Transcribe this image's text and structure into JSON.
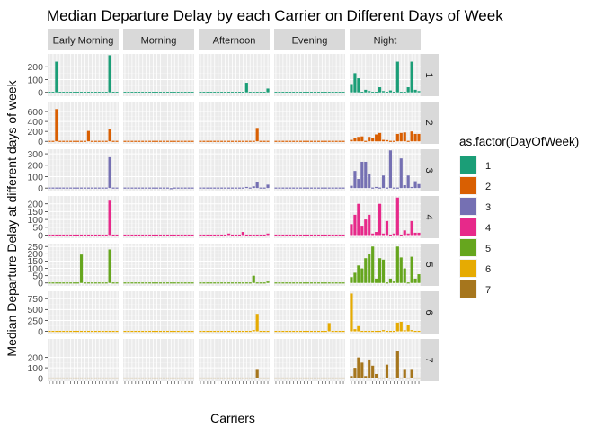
{
  "chart_data": {
    "type": "bar",
    "title": "Median Departure Delay by each Carrier on Different Days of Week",
    "xlabel": "Carriers",
    "ylabel": "Median Departure Delay at different days of week",
    "facet_columns": [
      "Early Morning",
      "Morning",
      "Afternoon",
      "Evening",
      "Night"
    ],
    "facet_rows": [
      "1",
      "2",
      "3",
      "4",
      "5",
      "6",
      "7"
    ],
    "legend": {
      "title": "as.factor(DayOfWeek)",
      "position": "right",
      "items": [
        {
          "label": "1",
          "color": "#1b9e77"
        },
        {
          "label": "2",
          "color": "#d95f02"
        },
        {
          "label": "3",
          "color": "#7570b3"
        },
        {
          "label": "4",
          "color": "#e7298a"
        },
        {
          "label": "5",
          "color": "#66a61e"
        },
        {
          "label": "6",
          "color": "#e6ab02"
        },
        {
          "label": "7",
          "color": "#a6761d"
        }
      ]
    },
    "row_axes": [
      {
        "ylim": [
          -30,
          300
        ],
        "ticks": [
          0,
          100,
          200
        ]
      },
      {
        "ylim": [
          -50,
          800
        ],
        "ticks": [
          0,
          200,
          400,
          600
        ]
      },
      {
        "ylim": [
          -30,
          340
        ],
        "ticks": [
          0,
          100,
          200,
          300
        ]
      },
      {
        "ylim": [
          -20,
          250
        ],
        "ticks": [
          0,
          50,
          100,
          150,
          200
        ]
      },
      {
        "ylim": [
          -20,
          270
        ],
        "ticks": [
          0,
          50,
          100,
          150,
          200,
          250
        ]
      },
      {
        "ylim": [
          -50,
          920
        ],
        "ticks": [
          0,
          250,
          500,
          750
        ]
      },
      {
        "ylim": [
          -30,
          380
        ],
        "ticks": [
          0,
          100,
          200
        ]
      }
    ],
    "n_carriers": 20,
    "grid": true,
    "series": [
      {
        "name": "1",
        "panels": [
          [
            5,
            3,
            240,
            5,
            4,
            5,
            4,
            0,
            3,
            4,
            0,
            5,
            4,
            5,
            4,
            3,
            0,
            290,
            5,
            6
          ],
          [
            6,
            5,
            4,
            5,
            3,
            5,
            4,
            3,
            4,
            5,
            3,
            4,
            5,
            3,
            4,
            5,
            0,
            4,
            3,
            5
          ],
          [
            4,
            3,
            5,
            4,
            3,
            2,
            4,
            3,
            5,
            6,
            8,
            5,
            4,
            75,
            3,
            2,
            0,
            4,
            6,
            30
          ],
          [
            3,
            2,
            4,
            3,
            2,
            3,
            4,
            2,
            3,
            2,
            4,
            3,
            2,
            3,
            4,
            2,
            3,
            3,
            2,
            4
          ],
          [
            65,
            150,
            110,
            5,
            20,
            10,
            2,
            5,
            40,
            10,
            0,
            15,
            0,
            240,
            5,
            8,
            40,
            240,
            20,
            10
          ]
        ]
      },
      {
        "name": "2",
        "panels": [
          [
            5,
            -10,
            650,
            4,
            5,
            3,
            5,
            4,
            3,
            4,
            5,
            210,
            3,
            -15,
            4,
            5,
            3,
            250,
            4,
            5
          ],
          [
            3,
            4,
            2,
            3,
            4,
            2,
            3,
            4,
            3,
            2,
            4,
            3,
            2,
            3,
            4,
            3,
            2,
            4,
            3,
            2
          ],
          [
            2,
            3,
            4,
            3,
            2,
            4,
            3,
            2,
            3,
            4,
            2,
            3,
            4,
            2,
            -15,
            3,
            270,
            4,
            2,
            3
          ],
          [
            3,
            2,
            4,
            3,
            2,
            -10,
            3,
            2,
            4,
            3,
            2,
            3,
            4,
            2,
            3,
            2,
            4,
            3,
            2,
            3
          ],
          [
            30,
            60,
            90,
            100,
            10,
            90,
            60,
            140,
            170,
            30,
            25,
            20,
            10,
            150,
            170,
            180,
            8,
            200,
            150,
            150
          ]
        ]
      },
      {
        "name": "3",
        "panels": [
          [
            4,
            5,
            3,
            4,
            5,
            4,
            3,
            5,
            4,
            5,
            3,
            4,
            5,
            4,
            3,
            -5,
            5,
            270,
            4,
            5
          ],
          [
            3,
            2,
            4,
            3,
            2,
            4,
            3,
            2,
            3,
            4,
            2,
            3,
            4,
            -10,
            3,
            2,
            4,
            3,
            2,
            3
          ],
          [
            3,
            4,
            2,
            3,
            4,
            2,
            3,
            4,
            2,
            3,
            4,
            2,
            5,
            10,
            3,
            15,
            50,
            4,
            3,
            30
          ],
          [
            3,
            2,
            4,
            3,
            2,
            3,
            4,
            2,
            3,
            2,
            4,
            3,
            2,
            3,
            4,
            2,
            3,
            3,
            2,
            4
          ],
          [
            20,
            150,
            80,
            230,
            230,
            120,
            5,
            10,
            5,
            110,
            0,
            330,
            5,
            5,
            260,
            25,
            110,
            10,
            60,
            35
          ]
        ]
      },
      {
        "name": "4",
        "panels": [
          [
            4,
            5,
            3,
            4,
            5,
            4,
            3,
            5,
            4,
            5,
            3,
            4,
            5,
            4,
            3,
            4,
            5,
            220,
            4,
            5
          ],
          [
            4,
            5,
            3,
            4,
            2,
            6,
            3,
            4,
            5,
            3,
            2,
            4,
            5,
            3,
            4,
            2,
            3,
            4,
            5,
            3
          ],
          [
            5,
            3,
            4,
            6,
            3,
            5,
            4,
            3,
            10,
            5,
            4,
            3,
            20,
            3,
            5,
            4,
            3,
            5,
            4,
            10
          ],
          [
            4,
            3,
            5,
            4,
            3,
            4,
            5,
            3,
            4,
            3,
            4,
            5,
            3,
            4,
            5,
            3,
            4,
            4,
            3,
            5
          ],
          [
            70,
            130,
            200,
            60,
            100,
            130,
            10,
            20,
            200,
            10,
            90,
            5,
            10,
            240,
            5,
            30,
            10,
            90,
            15,
            15
          ]
        ]
      },
      {
        "name": "5",
        "panels": [
          [
            4,
            5,
            3,
            4,
            5,
            4,
            3,
            5,
            4,
            195,
            3,
            4,
            5,
            4,
            3,
            5,
            5,
            230,
            4,
            5
          ],
          [
            3,
            4,
            2,
            3,
            4,
            2,
            3,
            4,
            3,
            2,
            4,
            3,
            2,
            3,
            4,
            3,
            2,
            4,
            3,
            2
          ],
          [
            3,
            4,
            2,
            3,
            4,
            2,
            3,
            4,
            2,
            3,
            4,
            2,
            3,
            4,
            3,
            50,
            5,
            4,
            3,
            10
          ],
          [
            3,
            2,
            4,
            3,
            2,
            3,
            4,
            2,
            3,
            2,
            4,
            3,
            2,
            3,
            4,
            2,
            3,
            3,
            2,
            4
          ],
          [
            40,
            70,
            120,
            100,
            170,
            200,
            250,
            30,
            170,
            160,
            5,
            30,
            10,
            250,
            175,
            100,
            5,
            180,
            30,
            60
          ]
        ]
      },
      {
        "name": "6",
        "panels": [
          [
            5,
            3,
            4,
            5,
            3,
            4,
            5,
            3,
            4,
            5,
            3,
            4,
            5,
            3,
            4,
            5,
            3,
            4,
            5,
            3
          ],
          [
            3,
            4,
            2,
            3,
            4,
            2,
            3,
            4,
            3,
            2,
            4,
            3,
            2,
            3,
            4,
            3,
            2,
            4,
            3,
            2
          ],
          [
            4,
            3,
            5,
            4,
            3,
            5,
            4,
            3,
            5,
            4,
            3,
            5,
            4,
            3,
            15,
            30,
            400,
            4,
            3,
            5
          ],
          [
            3,
            2,
            4,
            3,
            2,
            3,
            4,
            2,
            3,
            2,
            4,
            3,
            2,
            3,
            4,
            190,
            3,
            3,
            2,
            4
          ],
          [
            870,
            50,
            120,
            10,
            5,
            5,
            5,
            10,
            5,
            30,
            5,
            10,
            5,
            200,
            220,
            25,
            150,
            30,
            10,
            5
          ]
        ]
      },
      {
        "name": "7",
        "panels": [
          [
            5,
            3,
            4,
            5,
            3,
            4,
            5,
            3,
            4,
            5,
            3,
            4,
            5,
            3,
            4,
            5,
            3,
            4,
            5,
            3
          ],
          [
            3,
            4,
            2,
            3,
            4,
            2,
            3,
            4,
            3,
            2,
            4,
            3,
            2,
            3,
            4,
            3,
            2,
            4,
            3,
            2
          ],
          [
            4,
            3,
            5,
            4,
            3,
            5,
            4,
            3,
            5,
            4,
            3,
            5,
            4,
            3,
            4,
            5,
            80,
            4,
            3,
            5
          ],
          [
            3,
            2,
            4,
            3,
            2,
            3,
            4,
            2,
            3,
            2,
            4,
            3,
            2,
            3,
            4,
            2,
            3,
            3,
            2,
            4
          ],
          [
            20,
            100,
            200,
            150,
            20,
            180,
            120,
            40,
            10,
            10,
            130,
            5,
            10,
            260,
            10,
            80,
            5,
            80,
            10,
            10
          ]
        ]
      }
    ]
  }
}
